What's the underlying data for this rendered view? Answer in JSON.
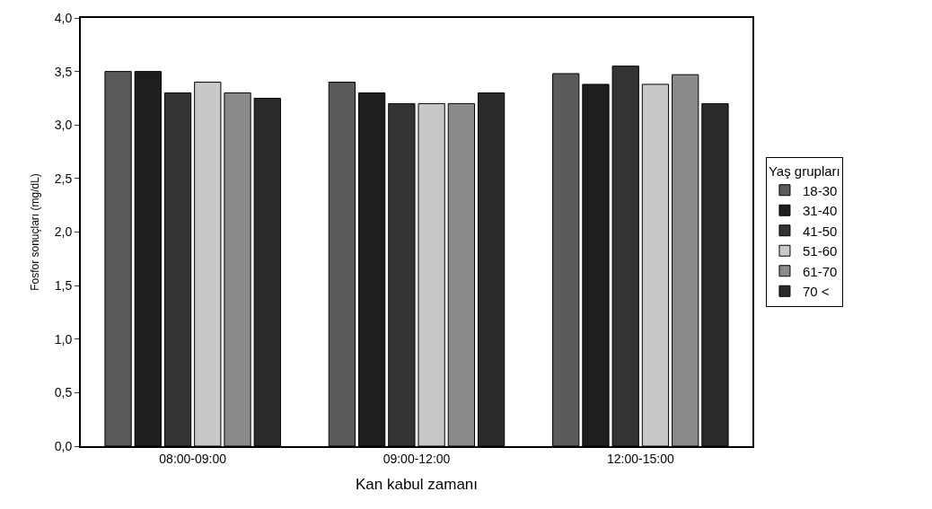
{
  "chart_data": {
    "type": "bar",
    "xlabel": "Kan kabul zamanı",
    "ylabel": "Fosfor sonuçları (mg/dL)",
    "legend_title": "Yaş grupları",
    "categories": [
      "08:00-09:00",
      "09:00-12:00",
      "12:00-15:00"
    ],
    "series": [
      {
        "name": "18-30",
        "color": "#5a5a5a",
        "values": [
          3.5,
          3.4,
          3.48
        ]
      },
      {
        "name": "31-40",
        "color": "#1e1e1e",
        "values": [
          3.5,
          3.3,
          3.38
        ]
      },
      {
        "name": "41-50",
        "color": "#333333",
        "values": [
          3.3,
          3.2,
          3.55
        ]
      },
      {
        "name": "51-60",
        "color": "#c8c8c8",
        "values": [
          3.4,
          3.2,
          3.38
        ]
      },
      {
        "name": "61-70",
        "color": "#8a8a8a",
        "values": [
          3.3,
          3.2,
          3.47
        ]
      },
      {
        "name": "70 <",
        "color": "#2a2a2a",
        "values": [
          3.25,
          3.3,
          3.2
        ]
      }
    ],
    "ylim": [
      0,
      4
    ],
    "yticks": [
      {
        "value": 0,
        "label": "0,0"
      },
      {
        "value": 0.5,
        "label": "0,5"
      },
      {
        "value": 1,
        "label": "1,0"
      },
      {
        "value": 1.5,
        "label": "1,5"
      },
      {
        "value": 2,
        "label": "2,0"
      },
      {
        "value": 2.5,
        "label": "2,5"
      },
      {
        "value": 3,
        "label": "3,0"
      },
      {
        "value": 3.5,
        "label": "3,5"
      },
      {
        "value": 4,
        "label": "4,0"
      }
    ],
    "legend": "right"
  }
}
